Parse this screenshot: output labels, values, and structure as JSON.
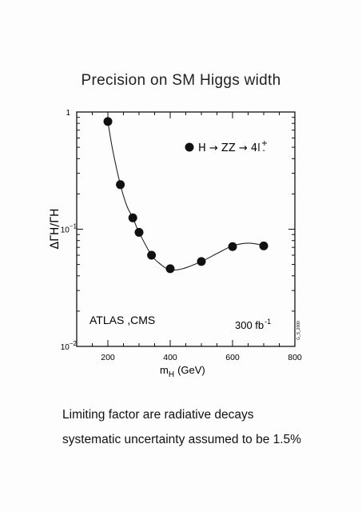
{
  "title": "Precision on SM Higgs width",
  "caption_line1": "Limiting factor are radiative decays",
  "caption_line2": "systematic uncertainty assumed to be 1.5%",
  "chart_data": {
    "type": "scatter",
    "yscale": "log",
    "xlim": [
      100,
      800
    ],
    "ylim": [
      0.01,
      1
    ],
    "x_ticks": [
      "200",
      "400",
      "600",
      "800"
    ],
    "y_ticks": [
      {
        "base": "1",
        "exp": ""
      },
      {
        "base": "10",
        "exp": "−1"
      },
      {
        "base": "10",
        "exp": "−2"
      }
    ],
    "ylabel": "ΔΓH/ΓH",
    "xlabel_main": "m",
    "xlabel_sub": "H",
    "xlabel_unit": "(GeV)",
    "legend": "H → ZZ → 4l",
    "legend_sup": "+",
    "legend_sub": "-",
    "annotation_left": "ATLAS ,CMS",
    "annotation_lumi": "300 fb",
    "annotation_lumi_exp": "-1",
    "side_label": "G_S_2000",
    "series": [
      {
        "x": [
          200,
          240,
          280,
          300,
          340,
          400,
          500,
          600,
          700
        ],
        "y": [
          0.83,
          0.24,
          0.125,
          0.094,
          0.06,
          0.046,
          0.053,
          0.071,
          0.072
        ]
      }
    ],
    "curve": {
      "x": [
        200,
        215,
        240,
        260,
        280,
        300,
        340,
        370,
        400,
        440,
        500,
        550,
        600,
        650,
        700
      ],
      "y": [
        0.83,
        0.48,
        0.24,
        0.16,
        0.125,
        0.094,
        0.06,
        0.05,
        0.045,
        0.046,
        0.053,
        0.062,
        0.072,
        0.076,
        0.073
      ]
    }
  }
}
